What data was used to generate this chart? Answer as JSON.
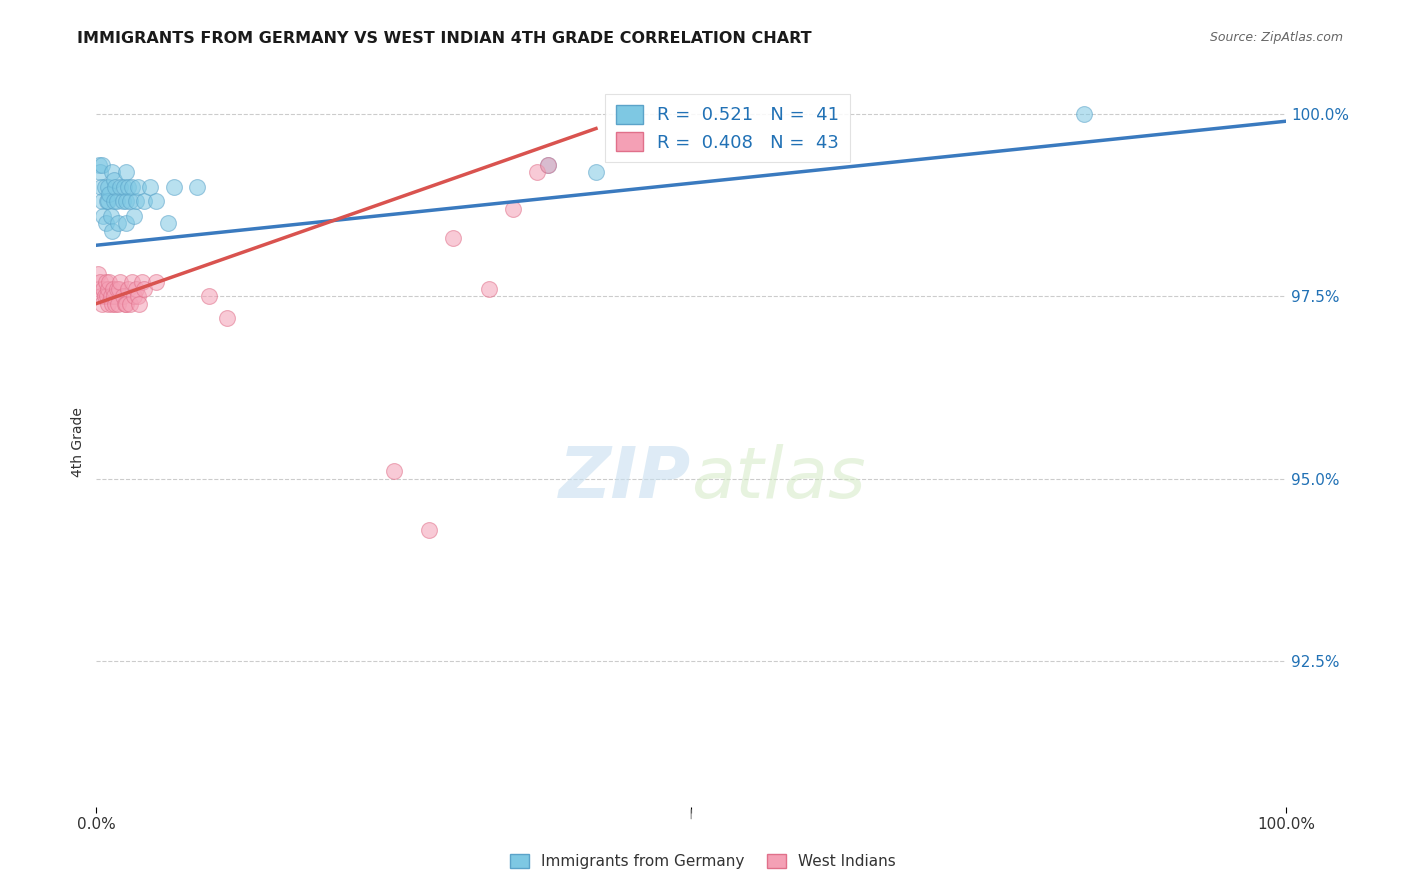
{
  "title": "IMMIGRANTS FROM GERMANY VS WEST INDIAN 4TH GRADE CORRELATION CHART",
  "source": "Source: ZipAtlas.com",
  "ylabel": "4th Grade",
  "xlim": [
    0.0,
    1.0
  ],
  "ylim": [
    0.905,
    1.005
  ],
  "xtick_labels": [
    "0.0%",
    "100.0%"
  ],
  "ytick_positions": [
    0.925,
    0.95,
    0.975,
    1.0
  ],
  "ytick_labels": [
    "92.5%",
    "95.0%",
    "97.5%",
    "100.0%"
  ],
  "legend_r1": "R =  0.521   N =  41",
  "legend_r2": "R =  0.408   N =  43",
  "watermark_zip": "ZIP",
  "watermark_atlas": "atlas",
  "blue_scatter_color": "#7ec8e3",
  "blue_scatter_edge": "#5ba3c9",
  "pink_scatter_color": "#f4a0b5",
  "pink_scatter_edge": "#e0708a",
  "blue_line_color": "#3a7abf",
  "pink_line_color": "#d9534f",
  "blue_legend_color": "#2171b5",
  "ytick_color": "#2171b5",
  "germany_x": [
    0.002,
    0.003,
    0.004,
    0.005,
    0.005,
    0.006,
    0.007,
    0.008,
    0.009,
    0.01,
    0.01,
    0.011,
    0.012,
    0.013,
    0.013,
    0.015,
    0.015,
    0.016,
    0.017,
    0.018,
    0.02,
    0.022,
    0.023,
    0.025,
    0.025,
    0.025,
    0.027,
    0.028,
    0.03,
    0.032,
    0.033,
    0.035,
    0.04,
    0.045,
    0.05,
    0.06,
    0.065,
    0.085,
    0.38,
    0.42,
    0.83
  ],
  "germany_y": [
    0.993,
    0.992,
    0.99,
    0.993,
    0.988,
    0.986,
    0.99,
    0.985,
    0.988,
    0.99,
    0.988,
    0.989,
    0.986,
    0.992,
    0.984,
    0.988,
    0.991,
    0.99,
    0.988,
    0.985,
    0.99,
    0.988,
    0.99,
    0.992,
    0.988,
    0.985,
    0.99,
    0.988,
    0.99,
    0.986,
    0.988,
    0.99,
    0.988,
    0.99,
    0.988,
    0.985,
    0.99,
    0.99,
    0.993,
    0.992,
    1.0
  ],
  "westindian_x": [
    0.001,
    0.002,
    0.003,
    0.004,
    0.005,
    0.006,
    0.007,
    0.008,
    0.009,
    0.01,
    0.01,
    0.011,
    0.012,
    0.013,
    0.014,
    0.015,
    0.016,
    0.017,
    0.018,
    0.019,
    0.02,
    0.022,
    0.024,
    0.025,
    0.027,
    0.028,
    0.03,
    0.032,
    0.033,
    0.035,
    0.036,
    0.038,
    0.04,
    0.05,
    0.095,
    0.11,
    0.25,
    0.28,
    0.3,
    0.33,
    0.35,
    0.37,
    0.38
  ],
  "westindian_y": [
    0.978,
    0.976,
    0.977,
    0.975,
    0.974,
    0.976,
    0.975,
    0.977,
    0.975,
    0.974,
    0.976,
    0.977,
    0.975,
    0.974,
    0.976,
    0.975,
    0.974,
    0.976,
    0.974,
    0.976,
    0.977,
    0.975,
    0.974,
    0.974,
    0.976,
    0.974,
    0.977,
    0.975,
    0.976,
    0.975,
    0.974,
    0.977,
    0.976,
    0.977,
    0.975,
    0.972,
    0.951,
    0.943,
    0.983,
    0.976,
    0.987,
    0.992,
    0.993
  ],
  "blue_trend_x": [
    0.0,
    1.0
  ],
  "blue_trend_y": [
    0.982,
    0.999
  ],
  "pink_trend_x": [
    0.0,
    0.42
  ],
  "pink_trend_y": [
    0.974,
    0.998
  ]
}
